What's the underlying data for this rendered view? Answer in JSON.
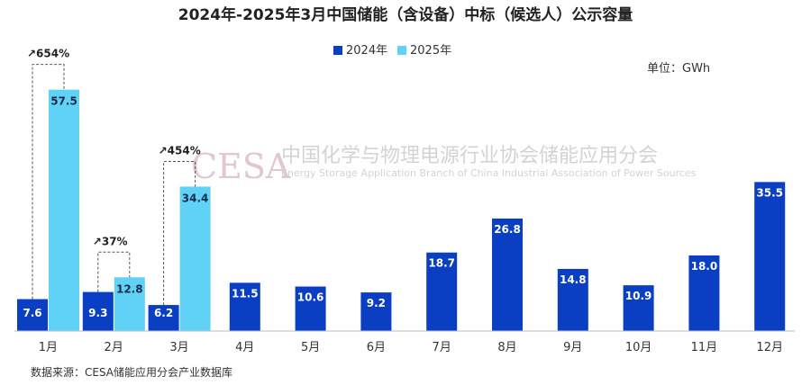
{
  "chart_data": {
    "type": "bar",
    "title": "2024年-2025年3月中国储能（含设备）中标（候选人）公示容量",
    "unit_label": "单位：GWh",
    "source": "数据来源：CESA储能应用分会产业数据库",
    "categories": [
      "1月",
      "2月",
      "3月",
      "4月",
      "5月",
      "6月",
      "7月",
      "8月",
      "9月",
      "10月",
      "11月",
      "12月"
    ],
    "series": [
      {
        "name": "2024年",
        "color": "#0a3fc4",
        "values": [
          7.6,
          9.3,
          6.2,
          11.5,
          10.6,
          9.2,
          18.7,
          26.8,
          14.8,
          10.9,
          18.0,
          35.5
        ]
      },
      {
        "name": "2025年",
        "color": "#5fd2f5",
        "values": [
          57.5,
          12.8,
          34.4,
          null,
          null,
          null,
          null,
          null,
          null,
          null,
          null,
          null
        ]
      }
    ],
    "value_labels": {
      "2024年": [
        "7.6",
        "9.3",
        "6.2",
        "11.5",
        "10.6",
        "9.2",
        "18.7",
        "26.8",
        "14.8",
        "10.9",
        "18.0",
        "35.5"
      ],
      "2025年": [
        "57.5",
        "12.8",
        "34.4"
      ]
    },
    "annotations": [
      {
        "category": "1月",
        "text": "↗654%"
      },
      {
        "category": "2月",
        "text": "↗37%"
      },
      {
        "category": "3月",
        "text": "↗454%"
      }
    ],
    "ylim": [
      0,
      60
    ],
    "legend_position": "top-center"
  },
  "watermark": {
    "logo": "CESA",
    "name_cn": "中国化学与物理电源行业协会储能应用分会",
    "name_en": "Energy Storage Application Branch of China Industrial Association of Power Sources"
  }
}
